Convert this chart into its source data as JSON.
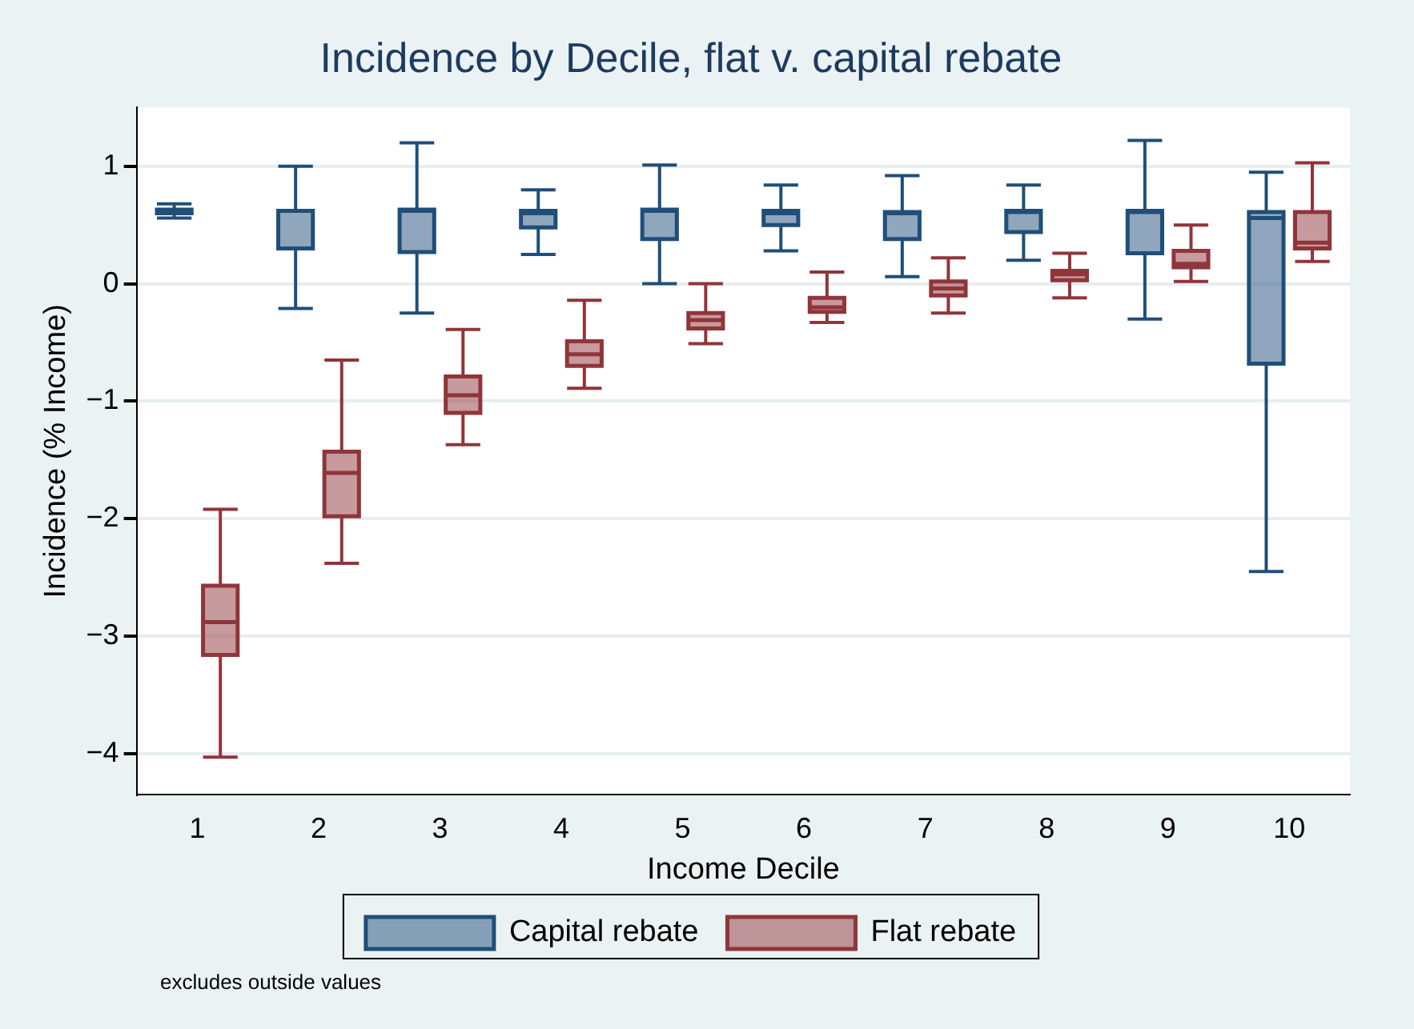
{
  "chart_data": {
    "type": "box",
    "title": "Incidence by Decile, flat v. capital rebate",
    "xlabel": "Income Decile",
    "ylabel": "Incidence (% Income)",
    "categories": [
      "1",
      "2",
      "3",
      "4",
      "5",
      "6",
      "7",
      "8",
      "9",
      "10"
    ],
    "ylim": [
      -4.35,
      1.5
    ],
    "yticks": [
      -4,
      -3,
      -2,
      -1,
      0,
      1
    ],
    "grid": "y",
    "legend": "bottom",
    "annotations": [
      "excludes outside values"
    ],
    "series": [
      {
        "name": "Capital rebate",
        "color": "#1f4e79",
        "boxes": [
          {
            "low": 0.56,
            "q1": 0.6,
            "median": 0.62,
            "q3": 0.63,
            "high": 0.68
          },
          {
            "low": -0.21,
            "q1": 0.3,
            "median": 0.62,
            "q3": 0.62,
            "high": 1.0
          },
          {
            "low": -0.25,
            "q1": 0.27,
            "median": 0.62,
            "q3": 0.63,
            "high": 1.2
          },
          {
            "low": 0.25,
            "q1": 0.48,
            "median": 0.6,
            "q3": 0.62,
            "high": 0.8
          },
          {
            "low": 0.0,
            "q1": 0.38,
            "median": 0.62,
            "q3": 0.63,
            "high": 1.01
          },
          {
            "low": 0.28,
            "q1": 0.5,
            "median": 0.6,
            "q3": 0.62,
            "high": 0.84
          },
          {
            "low": 0.06,
            "q1": 0.38,
            "median": 0.6,
            "q3": 0.61,
            "high": 0.92
          },
          {
            "low": 0.2,
            "q1": 0.44,
            "median": 0.61,
            "q3": 0.62,
            "high": 0.84
          },
          {
            "low": -0.3,
            "q1": 0.26,
            "median": 0.61,
            "q3": 0.62,
            "high": 1.22
          },
          {
            "low": -2.45,
            "q1": -0.68,
            "median": 0.56,
            "q3": 0.61,
            "high": 0.95
          }
        ]
      },
      {
        "name": "Flat rebate",
        "color": "#90353b",
        "boxes": [
          {
            "low": -4.03,
            "q1": -3.16,
            "median": -2.88,
            "q3": -2.57,
            "high": -1.92
          },
          {
            "low": -2.38,
            "q1": -1.98,
            "median": -1.61,
            "q3": -1.43,
            "high": -0.65
          },
          {
            "low": -1.37,
            "q1": -1.1,
            "median": -0.95,
            "q3": -0.79,
            "high": -0.39
          },
          {
            "low": -0.89,
            "q1": -0.7,
            "median": -0.6,
            "q3": -0.49,
            "high": -0.14
          },
          {
            "low": -0.51,
            "q1": -0.38,
            "median": -0.31,
            "q3": -0.25,
            "high": 0.0
          },
          {
            "low": -0.33,
            "q1": -0.24,
            "median": -0.2,
            "q3": -0.12,
            "high": 0.1
          },
          {
            "low": -0.25,
            "q1": -0.1,
            "median": -0.04,
            "q3": 0.02,
            "high": 0.22
          },
          {
            "low": -0.12,
            "q1": 0.03,
            "median": 0.08,
            "q3": 0.11,
            "high": 0.26
          },
          {
            "low": 0.02,
            "q1": 0.14,
            "median": 0.17,
            "q3": 0.28,
            "high": 0.5
          },
          {
            "low": 0.19,
            "q1": 0.3,
            "median": 0.35,
            "q3": 0.61,
            "high": 1.03
          }
        ]
      }
    ]
  }
}
